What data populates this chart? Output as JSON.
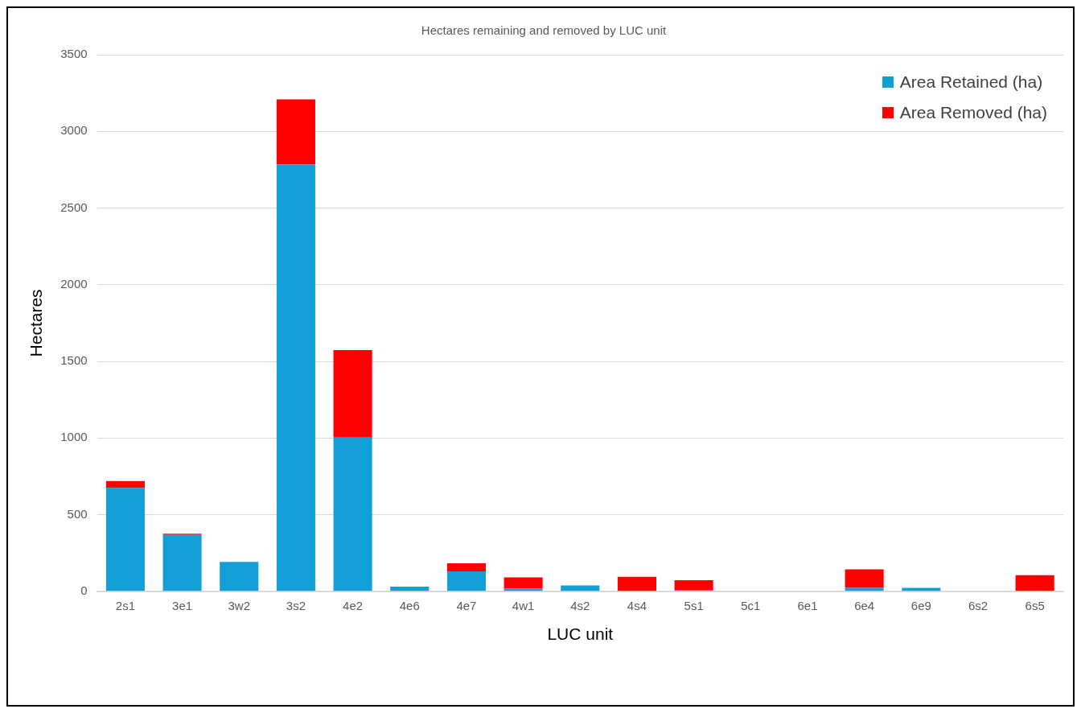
{
  "chart_data": {
    "type": "bar",
    "title": "Hectares remaining and removed by LUC unit",
    "xlabel": "LUC unit",
    "ylabel": "Hectares",
    "categories": [
      "2s1",
      "3e1",
      "3w2",
      "3s2",
      "4e2",
      "4e6",
      "4e7",
      "4w1",
      "4s2",
      "4s4",
      "5s1",
      "5c1",
      "6e1",
      "6e4",
      "6e9",
      "6s2",
      "6s5"
    ],
    "series": [
      {
        "name": "Area Retained (ha)",
        "color": "#119fd6",
        "values": [
          675,
          368,
          192,
          2783,
          1007,
          27,
          130,
          17,
          38,
          0,
          10,
          0,
          0,
          22,
          22,
          0,
          0
        ]
      },
      {
        "name": "Area Removed (ha)",
        "color": "#ff0000",
        "values": [
          45,
          7,
          0,
          426,
          566,
          3,
          53,
          74,
          0,
          95,
          63,
          0,
          0,
          121,
          0,
          0,
          105
        ]
      }
    ],
    "stacked": true,
    "ylim": [
      0,
      3500
    ],
    "yticks": [
      0,
      500,
      1000,
      1500,
      2000,
      2500,
      3000,
      3500
    ],
    "grid": "y",
    "legend": "top right"
  }
}
